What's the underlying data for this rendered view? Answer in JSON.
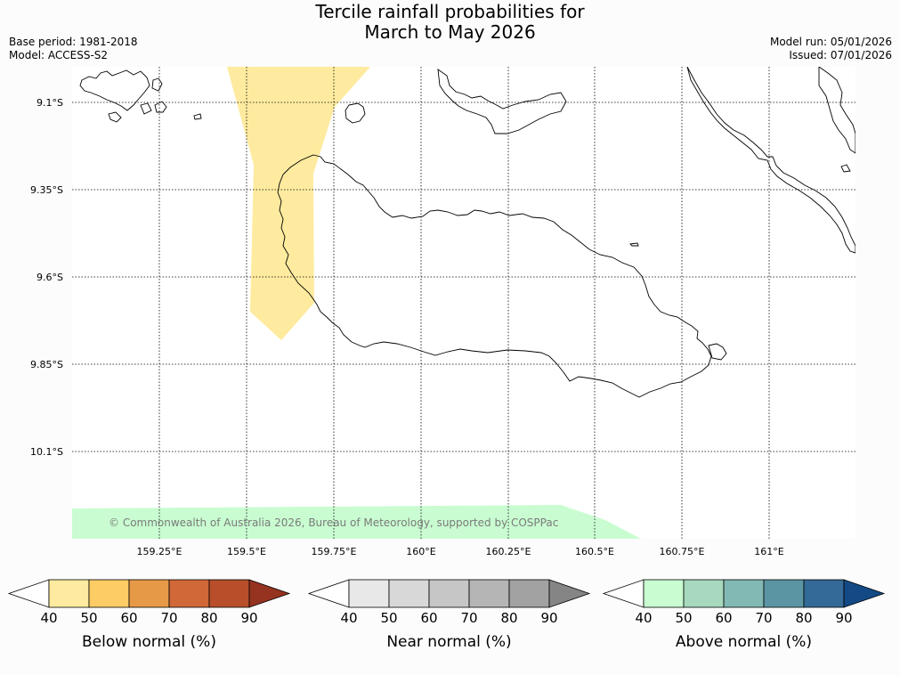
{
  "header": {
    "title_line1": "Tercile rainfall probabilities for",
    "title_line2": "March to May 2026",
    "base_period": "Base period: 1981-2018",
    "model": "Model: ACCESS-S2",
    "model_run": "Model run: 05/01/2026",
    "issued": "Issued: 07/01/2026"
  },
  "map": {
    "lat_labels": [
      "9.1°S",
      "9.35°S",
      "9.6°S",
      "9.85°S",
      "10.1°S"
    ],
    "lon_labels": [
      "159.25°E",
      "159.5°E",
      "159.75°E",
      "160°E",
      "160.25°E",
      "160.5°E",
      "160.75°E",
      "161°E"
    ],
    "copyright": "© Commonwealth of Australia 2026, Bureau of Meteorology, supported by COSPPac"
  },
  "colorbars": [
    {
      "title": "Below normal (%)",
      "ticks": [
        "40",
        "50",
        "60",
        "70",
        "80",
        "90"
      ],
      "colors": [
        "#ffffff",
        "#feeb9f",
        "#fecc65",
        "#e69a48",
        "#d06838",
        "#b84f2a",
        "#953220"
      ]
    },
    {
      "title": "Near normal (%)",
      "ticks": [
        "40",
        "50",
        "60",
        "70",
        "80",
        "90"
      ],
      "colors": [
        "#ffffff",
        "#e8e8e8",
        "#d8d8d8",
        "#c6c6c6",
        "#b5b5b5",
        "#a2a2a2",
        "#858585"
      ]
    },
    {
      "title": "Above normal (%)",
      "ticks": [
        "40",
        "50",
        "60",
        "70",
        "80",
        "90"
      ],
      "colors": [
        "#ffffff",
        "#c9fdd1",
        "#a6d9bd",
        "#82b9b4",
        "#5b95a3",
        "#336a98",
        "#134a86"
      ]
    }
  ],
  "colors": {
    "below_fill": "#feeb9f",
    "above_fill": "#c9fdd1"
  }
}
